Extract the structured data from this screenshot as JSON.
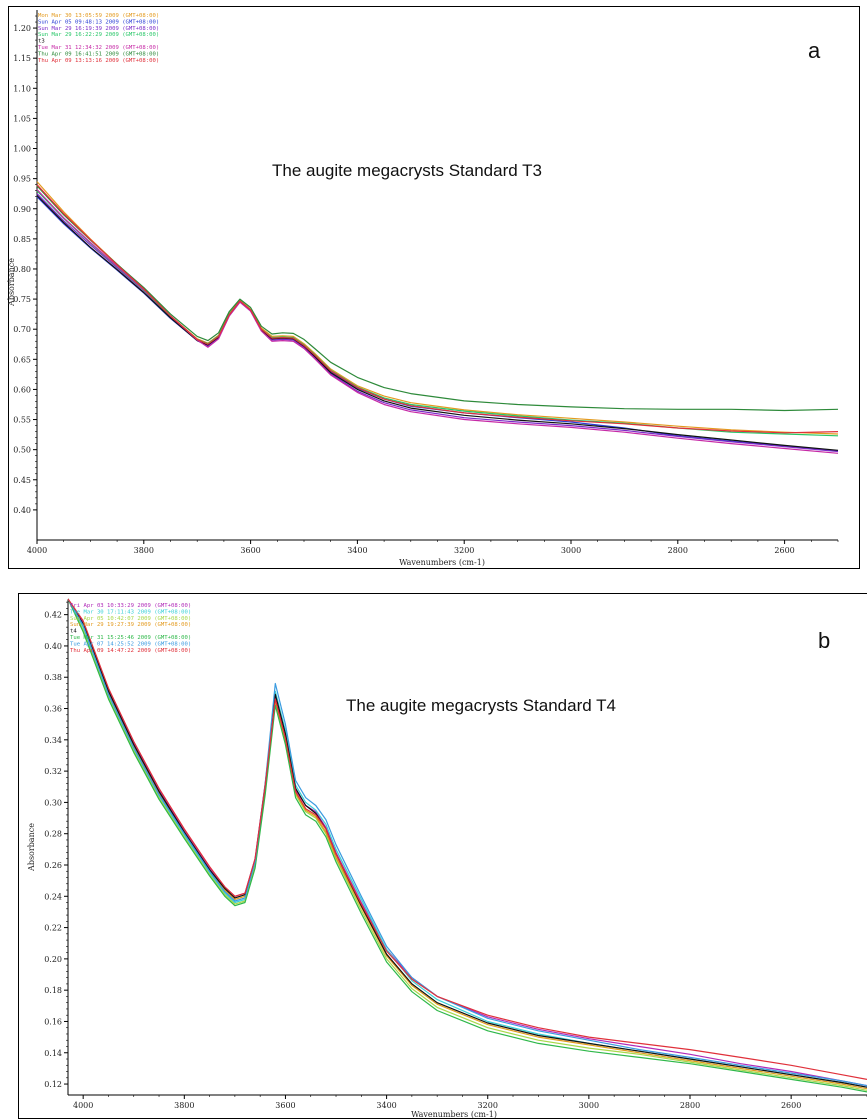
{
  "chart_data": [
    {
      "panel_label": "a",
      "type": "line",
      "title": "The augite megacrysts Standard T3",
      "xlabel": "Wavenumbers (cm-1)",
      "ylabel": "Absorbance",
      "xlim": [
        4000,
        2500
      ],
      "ylim": [
        0.35,
        1.23
      ],
      "x_reversed": true,
      "x_ticks": [
        4000,
        3800,
        3600,
        3400,
        3200,
        3000,
        2800,
        2600
      ],
      "y_ticks": [
        0.4,
        0.45,
        0.5,
        0.55,
        0.6,
        0.65,
        0.7,
        0.75,
        0.8,
        0.85,
        0.9,
        0.95,
        1.0,
        1.05,
        1.1,
        1.15,
        1.2
      ],
      "grid": false,
      "legend_position": "top-left",
      "legend": [
        {
          "text": "Mon Mar 30 13:05:59 2009 (GMT+08:00)",
          "color": "#e39a1e"
        },
        {
          "text": "Sun Apr 05 09:48:13 2009 (GMT+08:00)",
          "color": "#2c3fd6"
        },
        {
          "text": "Sun Mar 29 16:19:39 2009 (GMT+08:00)",
          "color": "#7b2bc9"
        },
        {
          "text": "Sun Mar 29 16:22:29 2009 (GMT+08:00)",
          "color": "#28c768"
        },
        {
          "text": "t3",
          "color": "#111111"
        },
        {
          "text": "Tue Mar 31 12:34:32 2009 (GMT+08:00)",
          "color": "#c62aa6"
        },
        {
          "text": "Thu Apr 09 16:41:51 2009 (GMT+08:00)",
          "color": "#2e8a3a"
        },
        {
          "text": "Thu Apr 09 13:13:16 2009 (GMT+08:00)",
          "color": "#e0303a"
        }
      ],
      "x": [
        4000,
        3950,
        3900,
        3850,
        3800,
        3750,
        3700,
        3680,
        3660,
        3640,
        3620,
        3600,
        3580,
        3560,
        3540,
        3520,
        3500,
        3480,
        3450,
        3400,
        3350,
        3300,
        3200,
        3100,
        3000,
        2900,
        2800,
        2700,
        2600,
        2500
      ],
      "series": [
        {
          "color": "#e39a1e",
          "values": [
            0.945,
            0.895,
            0.85,
            0.808,
            0.768,
            0.722,
            0.684,
            0.677,
            0.69,
            0.726,
            0.748,
            0.733,
            0.702,
            0.688,
            0.689,
            0.688,
            0.676,
            0.66,
            0.634,
            0.606,
            0.589,
            0.578,
            0.566,
            0.558,
            0.552,
            0.546,
            0.539,
            0.533,
            0.529,
            0.526
          ]
        },
        {
          "color": "#2c3fd6",
          "values": [
            0.92,
            0.875,
            0.835,
            0.798,
            0.76,
            0.718,
            0.681,
            0.673,
            0.686,
            0.723,
            0.746,
            0.731,
            0.699,
            0.684,
            0.685,
            0.684,
            0.672,
            0.656,
            0.63,
            0.602,
            0.584,
            0.572,
            0.561,
            0.553,
            0.546,
            0.536,
            0.523,
            0.514,
            0.506,
            0.498
          ]
        },
        {
          "color": "#7b2bc9",
          "values": [
            0.925,
            0.88,
            0.84,
            0.802,
            0.764,
            0.72,
            0.681,
            0.672,
            0.685,
            0.722,
            0.745,
            0.73,
            0.698,
            0.682,
            0.683,
            0.682,
            0.67,
            0.653,
            0.626,
            0.597,
            0.578,
            0.566,
            0.553,
            0.546,
            0.54,
            0.532,
            0.522,
            0.513,
            0.505,
            0.497
          ]
        },
        {
          "color": "#28c768",
          "values": [
            0.93,
            0.884,
            0.843,
            0.804,
            0.765,
            0.721,
            0.683,
            0.676,
            0.689,
            0.725,
            0.747,
            0.732,
            0.7,
            0.686,
            0.687,
            0.686,
            0.674,
            0.658,
            0.632,
            0.604,
            0.586,
            0.575,
            0.564,
            0.556,
            0.549,
            0.544,
            0.536,
            0.529,
            0.526,
            0.523
          ]
        },
        {
          "color": "#111111",
          "values": [
            0.922,
            0.877,
            0.836,
            0.799,
            0.761,
            0.719,
            0.681,
            0.674,
            0.687,
            0.723,
            0.746,
            0.731,
            0.699,
            0.684,
            0.685,
            0.684,
            0.672,
            0.655,
            0.628,
            0.6,
            0.581,
            0.569,
            0.557,
            0.549,
            0.543,
            0.535,
            0.525,
            0.516,
            0.507,
            0.499
          ]
        },
        {
          "color": "#c62aa6",
          "values": [
            0.932,
            0.885,
            0.844,
            0.805,
            0.766,
            0.722,
            0.682,
            0.67,
            0.684,
            0.722,
            0.745,
            0.73,
            0.697,
            0.68,
            0.681,
            0.68,
            0.668,
            0.651,
            0.624,
            0.595,
            0.575,
            0.563,
            0.55,
            0.543,
            0.537,
            0.529,
            0.519,
            0.51,
            0.502,
            0.494
          ]
        },
        {
          "color": "#2e8a3a",
          "values": [
            0.938,
            0.89,
            0.848,
            0.808,
            0.769,
            0.725,
            0.688,
            0.681,
            0.694,
            0.729,
            0.75,
            0.736,
            0.705,
            0.692,
            0.694,
            0.693,
            0.683,
            0.668,
            0.645,
            0.62,
            0.603,
            0.593,
            0.581,
            0.575,
            0.571,
            0.568,
            0.567,
            0.567,
            0.565,
            0.567
          ]
        },
        {
          "color": "#e0303a",
          "values": [
            0.94,
            0.892,
            0.849,
            0.807,
            0.767,
            0.722,
            0.683,
            0.675,
            0.688,
            0.724,
            0.747,
            0.732,
            0.7,
            0.685,
            0.686,
            0.685,
            0.673,
            0.657,
            0.631,
            0.603,
            0.584,
            0.573,
            0.561,
            0.554,
            0.548,
            0.543,
            0.536,
            0.531,
            0.528,
            0.53
          ]
        }
      ]
    },
    {
      "panel_label": "b",
      "type": "line",
      "title": "The augite megacrysts Standard T4",
      "xlabel": "Wavenumbers (cm-1)",
      "ylabel": "Absorbance",
      "xlim": [
        4030,
        2450
      ],
      "ylim": [
        0.113,
        0.43
      ],
      "x_reversed": true,
      "x_ticks": [
        4000,
        3800,
        3600,
        3400,
        3200,
        3000,
        2800,
        2600
      ],
      "y_ticks": [
        0.12,
        0.14,
        0.16,
        0.18,
        0.2,
        0.22,
        0.24,
        0.26,
        0.28,
        0.3,
        0.32,
        0.34,
        0.36,
        0.38,
        0.4,
        0.42
      ],
      "grid": false,
      "legend_position": "top-left",
      "legend": [
        {
          "text": "Fri Apr 03 10:33:29 2009 (GMT+08:00)",
          "color": "#b02ab8"
        },
        {
          "text": "Tue Mar 30 17:11:43 2009 (GMT+08:00)",
          "color": "#3ad0d6"
        },
        {
          "text": "Sun Apr 05 10:42:07 2009 (GMT+08:00)",
          "color": "#a8d84a"
        },
        {
          "text": "Sun Mar 29 19:27:39 2009 (GMT+08:00)",
          "color": "#e39a1e"
        },
        {
          "text": "t4",
          "color": "#111111"
        },
        {
          "text": "Tue Mar 31 15:25:46 2009 (GMT+08:00)",
          "color": "#2fb84a"
        },
        {
          "text": "Tue Apr 07 14:25:52 2009 (GMT+08:00)",
          "color": "#3a9be0"
        },
        {
          "text": "Thu Apr 09 14:47:22 2009 (GMT+08:00)",
          "color": "#e0303a"
        }
      ],
      "x": [
        4030,
        4000,
        3950,
        3900,
        3850,
        3800,
        3750,
        3720,
        3700,
        3680,
        3660,
        3640,
        3620,
        3600,
        3580,
        3560,
        3540,
        3520,
        3500,
        3450,
        3400,
        3350,
        3300,
        3200,
        3100,
        3000,
        2900,
        2800,
        2700,
        2600,
        2500,
        2450
      ],
      "series": [
        {
          "color": "#b02ab8",
          "values": [
            0.43,
            0.415,
            0.372,
            0.338,
            0.308,
            0.282,
            0.258,
            0.246,
            0.24,
            0.242,
            0.264,
            0.312,
            0.368,
            0.342,
            0.308,
            0.298,
            0.294,
            0.284,
            0.268,
            0.236,
            0.206,
            0.188,
            0.176,
            0.163,
            0.155,
            0.149,
            0.144,
            0.139,
            0.133,
            0.128,
            0.122,
            0.119
          ]
        },
        {
          "color": "#3ad0d6",
          "values": [
            0.43,
            0.412,
            0.368,
            0.334,
            0.304,
            0.279,
            0.255,
            0.242,
            0.236,
            0.238,
            0.26,
            0.309,
            0.371,
            0.346,
            0.311,
            0.3,
            0.295,
            0.286,
            0.27,
            0.238,
            0.206,
            0.186,
            0.174,
            0.16,
            0.152,
            0.146,
            0.141,
            0.136,
            0.131,
            0.126,
            0.121,
            0.118
          ]
        },
        {
          "color": "#a8d84a",
          "values": [
            0.43,
            0.41,
            0.367,
            0.333,
            0.303,
            0.278,
            0.254,
            0.241,
            0.235,
            0.237,
            0.259,
            0.307,
            0.364,
            0.339,
            0.305,
            0.294,
            0.29,
            0.28,
            0.264,
            0.231,
            0.2,
            0.181,
            0.169,
            0.156,
            0.148,
            0.143,
            0.139,
            0.134,
            0.129,
            0.124,
            0.119,
            0.116
          ]
        },
        {
          "color": "#e39a1e",
          "values": [
            0.43,
            0.413,
            0.37,
            0.336,
            0.306,
            0.281,
            0.257,
            0.244,
            0.238,
            0.24,
            0.262,
            0.309,
            0.365,
            0.34,
            0.306,
            0.295,
            0.291,
            0.281,
            0.265,
            0.233,
            0.202,
            0.183,
            0.171,
            0.158,
            0.15,
            0.145,
            0.14,
            0.135,
            0.13,
            0.125,
            0.12,
            0.117
          ]
        },
        {
          "color": "#111111",
          "values": [
            0.43,
            0.414,
            0.371,
            0.337,
            0.307,
            0.281,
            0.257,
            0.245,
            0.239,
            0.241,
            0.263,
            0.311,
            0.369,
            0.344,
            0.309,
            0.298,
            0.293,
            0.283,
            0.267,
            0.234,
            0.203,
            0.184,
            0.172,
            0.159,
            0.151,
            0.146,
            0.141,
            0.136,
            0.131,
            0.126,
            0.121,
            0.118
          ]
        },
        {
          "color": "#2fb84a",
          "values": [
            0.43,
            0.409,
            0.366,
            0.332,
            0.302,
            0.277,
            0.253,
            0.24,
            0.234,
            0.236,
            0.258,
            0.305,
            0.362,
            0.337,
            0.303,
            0.292,
            0.288,
            0.278,
            0.262,
            0.229,
            0.198,
            0.179,
            0.167,
            0.154,
            0.146,
            0.141,
            0.137,
            0.133,
            0.128,
            0.123,
            0.118,
            0.115
          ]
        },
        {
          "color": "#3a9be0",
          "values": [
            0.43,
            0.413,
            0.369,
            0.335,
            0.305,
            0.28,
            0.256,
            0.243,
            0.237,
            0.239,
            0.262,
            0.312,
            0.376,
            0.35,
            0.314,
            0.303,
            0.298,
            0.289,
            0.273,
            0.24,
            0.208,
            0.188,
            0.176,
            0.162,
            0.154,
            0.148,
            0.142,
            0.137,
            0.132,
            0.127,
            0.122,
            0.119
          ]
        },
        {
          "color": "#e0303a",
          "values": [
            0.43,
            0.416,
            0.373,
            0.339,
            0.309,
            0.283,
            0.259,
            0.246,
            0.24,
            0.242,
            0.264,
            0.311,
            0.366,
            0.341,
            0.307,
            0.296,
            0.292,
            0.283,
            0.267,
            0.235,
            0.205,
            0.187,
            0.176,
            0.164,
            0.156,
            0.15,
            0.146,
            0.142,
            0.137,
            0.132,
            0.126,
            0.123
          ]
        }
      ]
    }
  ]
}
